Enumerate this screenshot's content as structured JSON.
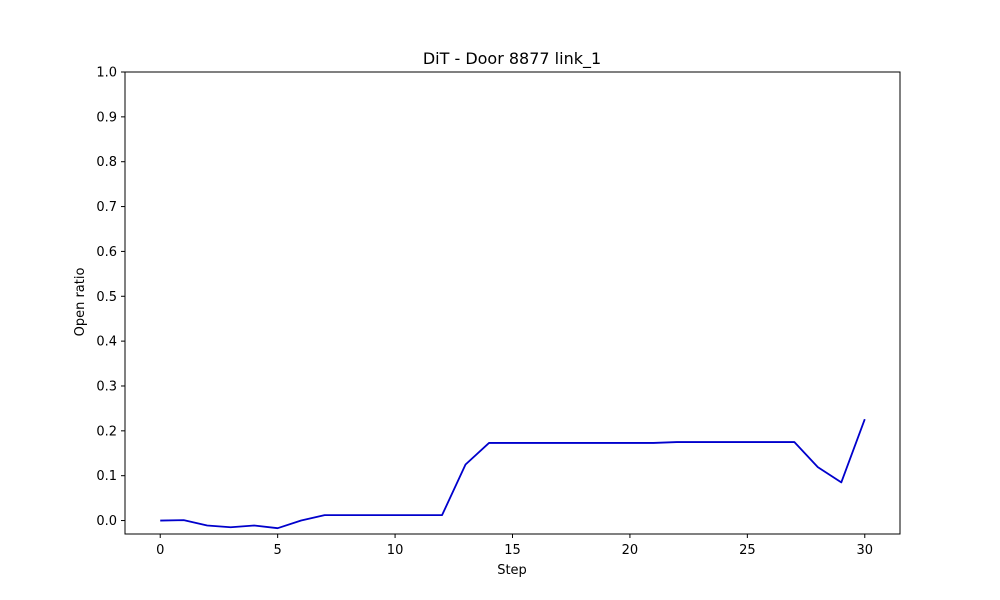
{
  "chart_data": {
    "type": "line",
    "title": "DiT - Door 8877 link_1",
    "xlabel": "Step",
    "ylabel": "Open ratio",
    "xlim": [
      -1.5,
      31.5
    ],
    "ylim": [
      -0.03,
      1.0
    ],
    "xticks": [
      0,
      5,
      10,
      15,
      20,
      25,
      30
    ],
    "yticks": [
      0.0,
      0.1,
      0.2,
      0.3,
      0.4,
      0.5,
      0.6,
      0.7,
      0.8,
      0.9,
      1.0
    ],
    "grid": false,
    "line_color": "#0000cc",
    "series": [
      {
        "x": [
          0,
          1,
          2,
          3,
          4,
          5,
          6,
          7,
          8,
          9,
          10,
          11,
          12,
          13,
          14,
          15,
          16,
          17,
          18,
          19,
          20,
          21,
          22,
          23,
          24,
          25,
          26,
          27,
          28,
          29,
          30
        ],
        "values": [
          0.0,
          0.001,
          -0.011,
          -0.015,
          -0.011,
          -0.017,
          0.0,
          0.012,
          0.012,
          0.012,
          0.012,
          0.012,
          0.012,
          0.125,
          0.173,
          0.173,
          0.173,
          0.173,
          0.173,
          0.173,
          0.173,
          0.173,
          0.175,
          0.175,
          0.175,
          0.175,
          0.175,
          0.175,
          0.119,
          0.085,
          0.226
        ]
      }
    ]
  }
}
